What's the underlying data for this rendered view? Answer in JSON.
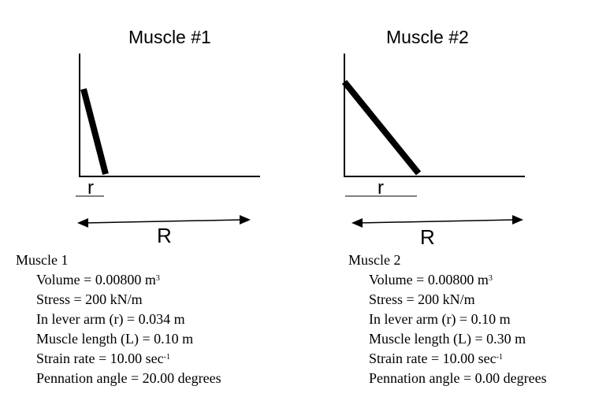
{
  "muscles": [
    {
      "title": "Muscle #1",
      "r_label": "r",
      "R_label": "R",
      "heading": "Muscle 1",
      "volume_text": "Volume = 0.00800 m",
      "volume_sup": "3",
      "stress_text": "Stress = 200 kN/m",
      "lever_text": "In lever arm (r) = 0.034 m",
      "length_text": "Muscle length (L) = 0.10 m",
      "strain_text": "Strain rate = 10.00 sec",
      "strain_sup": "-1",
      "pennation_text": "Pennation angle = 20.00 degrees"
    },
    {
      "title": "Muscle #2",
      "r_label": "r",
      "R_label": "R",
      "heading": "Muscle 2",
      "volume_text": "Volume = 0.00800 m",
      "volume_sup": "3",
      "stress_text": "Stress = 200 kN/m",
      "lever_text": "In lever arm (r) = 0.10 m",
      "length_text": "Muscle length (L) = 0.30 m",
      "strain_text": "Strain rate = 10.00 sec",
      "strain_sup": "-1",
      "pennation_text": "Pennation angle = 0.00 degrees"
    }
  ]
}
